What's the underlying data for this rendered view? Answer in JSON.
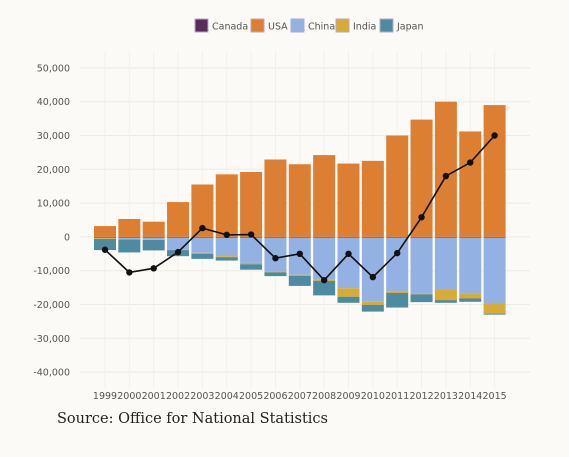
{
  "source": "Source: Office for National Statistics",
  "chart_data": {
    "type": "bar",
    "stacked": true,
    "categories": [
      "1999",
      "2000",
      "2001",
      "2002",
      "2003",
      "2004",
      "2005",
      "2006",
      "2007",
      "2008",
      "2009",
      "2010",
      "2011",
      "2012",
      "2013",
      "2014",
      "2015"
    ],
    "series": [
      {
        "name": "Canada",
        "color": "#5a2d5a",
        "values": [
          -200,
          -200,
          -200,
          -200,
          -200,
          -200,
          -200,
          -200,
          -200,
          -200,
          -200,
          -200,
          -200,
          -200,
          -200,
          -200,
          -200
        ]
      },
      {
        "name": "USA",
        "color": "#dc7f33",
        "values": [
          3200,
          5300,
          4500,
          10300,
          15500,
          18500,
          19200,
          22900,
          21500,
          24200,
          21700,
          22500,
          30000,
          34700,
          40000,
          31200,
          39000
        ]
      },
      {
        "name": "China",
        "color": "#93b2e3",
        "values": [
          -200,
          -400,
          -500,
          -3500,
          -4500,
          -5500,
          -7500,
          -10000,
          -11000,
          -12500,
          -15000,
          -19000,
          -16000,
          -16500,
          -15500,
          -16500,
          -19500
        ]
      },
      {
        "name": "India",
        "color": "#d8ab34",
        "values": [
          -200,
          -200,
          -200,
          -200,
          -300,
          -300,
          -400,
          -300,
          -300,
          -300,
          -2500,
          -900,
          -400,
          -300,
          -3000,
          -1500,
          -3000
        ]
      },
      {
        "name": "Japan",
        "color": "#4e8aa0",
        "values": [
          -3300,
          -3800,
          -3100,
          -1800,
          -1500,
          -1000,
          -1600,
          -1100,
          -3000,
          -4300,
          -1800,
          -2000,
          -4300,
          -2300,
          -800,
          -1000,
          -300
        ]
      }
    ],
    "net": [
      -3800,
      -10500,
      -9300,
      -4500,
      2600,
      600,
      700,
      -6300,
      -5000,
      -12800,
      -5000,
      -11900,
      -4800,
      5800,
      18000,
      22000,
      30000
    ],
    "ylim": [
      -45000,
      55000
    ],
    "yticks": [
      -40000,
      -30000,
      -20000,
      -10000,
      0,
      10000,
      20000,
      30000,
      40000,
      50000
    ],
    "ytick_labels": [
      "-40,000",
      "-30,000",
      "-20,000",
      "-10,000",
      "0",
      "10,000",
      "20,000",
      "30,000",
      "40,000",
      "50,000"
    ],
    "grid": true,
    "legend_position": "top-center",
    "title": "",
    "xlabel": "",
    "ylabel": ""
  }
}
